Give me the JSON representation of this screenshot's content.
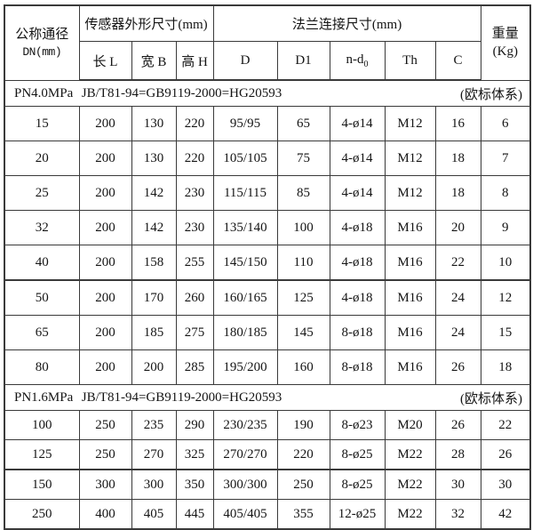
{
  "page": {
    "background": "#ffffff",
    "border_color": "#3a3a3a",
    "text_color": "#141414"
  },
  "table": {
    "header": {
      "dn_line1": "公称通径",
      "dn_line2": "DN(mm)",
      "sensor_group": "传感器外形尺寸(mm)",
      "flange_group": "法兰连接尺寸(mm)",
      "weight_line1": "重量",
      "weight_line2": "(Kg)",
      "sub": {
        "L": "长 L",
        "B": "宽 B",
        "H": "高 H",
        "D": "D",
        "D1": "D1",
        "nd0_base": "n-d",
        "nd0_sub": "0",
        "Th": "Th",
        "C": "C"
      }
    },
    "sections": [
      {
        "pressure": "PN4.0MPa",
        "standard": "JB/T81-94=GB9119-2000=HG20593",
        "note": "(欧标体系)",
        "rows": [
          [
            "15",
            "200",
            "130",
            "220",
            "95/95",
            "65",
            "4-ø14",
            "M12",
            "16",
            "6"
          ],
          [
            "20",
            "200",
            "130",
            "220",
            "105/105",
            "75",
            "4-ø14",
            "M12",
            "18",
            "7"
          ],
          [
            "25",
            "200",
            "142",
            "230",
            "115/115",
            "85",
            "4-ø14",
            "M12",
            "18",
            "8"
          ],
          [
            "32",
            "200",
            "142",
            "230",
            "135/140",
            "100",
            "4-ø18",
            "M16",
            "20",
            "9"
          ],
          [
            "40",
            "200",
            "158",
            "255",
            "145/150",
            "110",
            "4-ø18",
            "M16",
            "22",
            "10"
          ],
          [
            "50",
            "200",
            "170",
            "260",
            "160/165",
            "125",
            "4-ø18",
            "M16",
            "24",
            "12"
          ],
          [
            "65",
            "200",
            "185",
            "275",
            "180/185",
            "145",
            "8-ø18",
            "M16",
            "24",
            "15"
          ],
          [
            "80",
            "200",
            "200",
            "285",
            "195/200",
            "160",
            "8-ø18",
            "M16",
            "26",
            "18"
          ]
        ]
      },
      {
        "pressure": "PN1.6MPa",
        "standard": "JB/T81-94=GB9119-2000=HG20593",
        "note": "(欧标体系)",
        "rows": [
          [
            "100",
            "250",
            "235",
            "290",
            "230/235",
            "190",
            "8-ø23",
            "M20",
            "26",
            "22"
          ],
          [
            "125",
            "250",
            "270",
            "325",
            "270/270",
            "220",
            "8-ø25",
            "M22",
            "28",
            "26"
          ],
          [
            "150",
            "300",
            "300",
            "350",
            "300/300",
            "250",
            "8-ø25",
            "M22",
            "30",
            "30"
          ],
          [
            "250",
            "400",
            "405",
            "445",
            "405/405",
            "355",
            "12-ø25",
            "M22",
            "32",
            "42"
          ]
        ]
      }
    ]
  }
}
